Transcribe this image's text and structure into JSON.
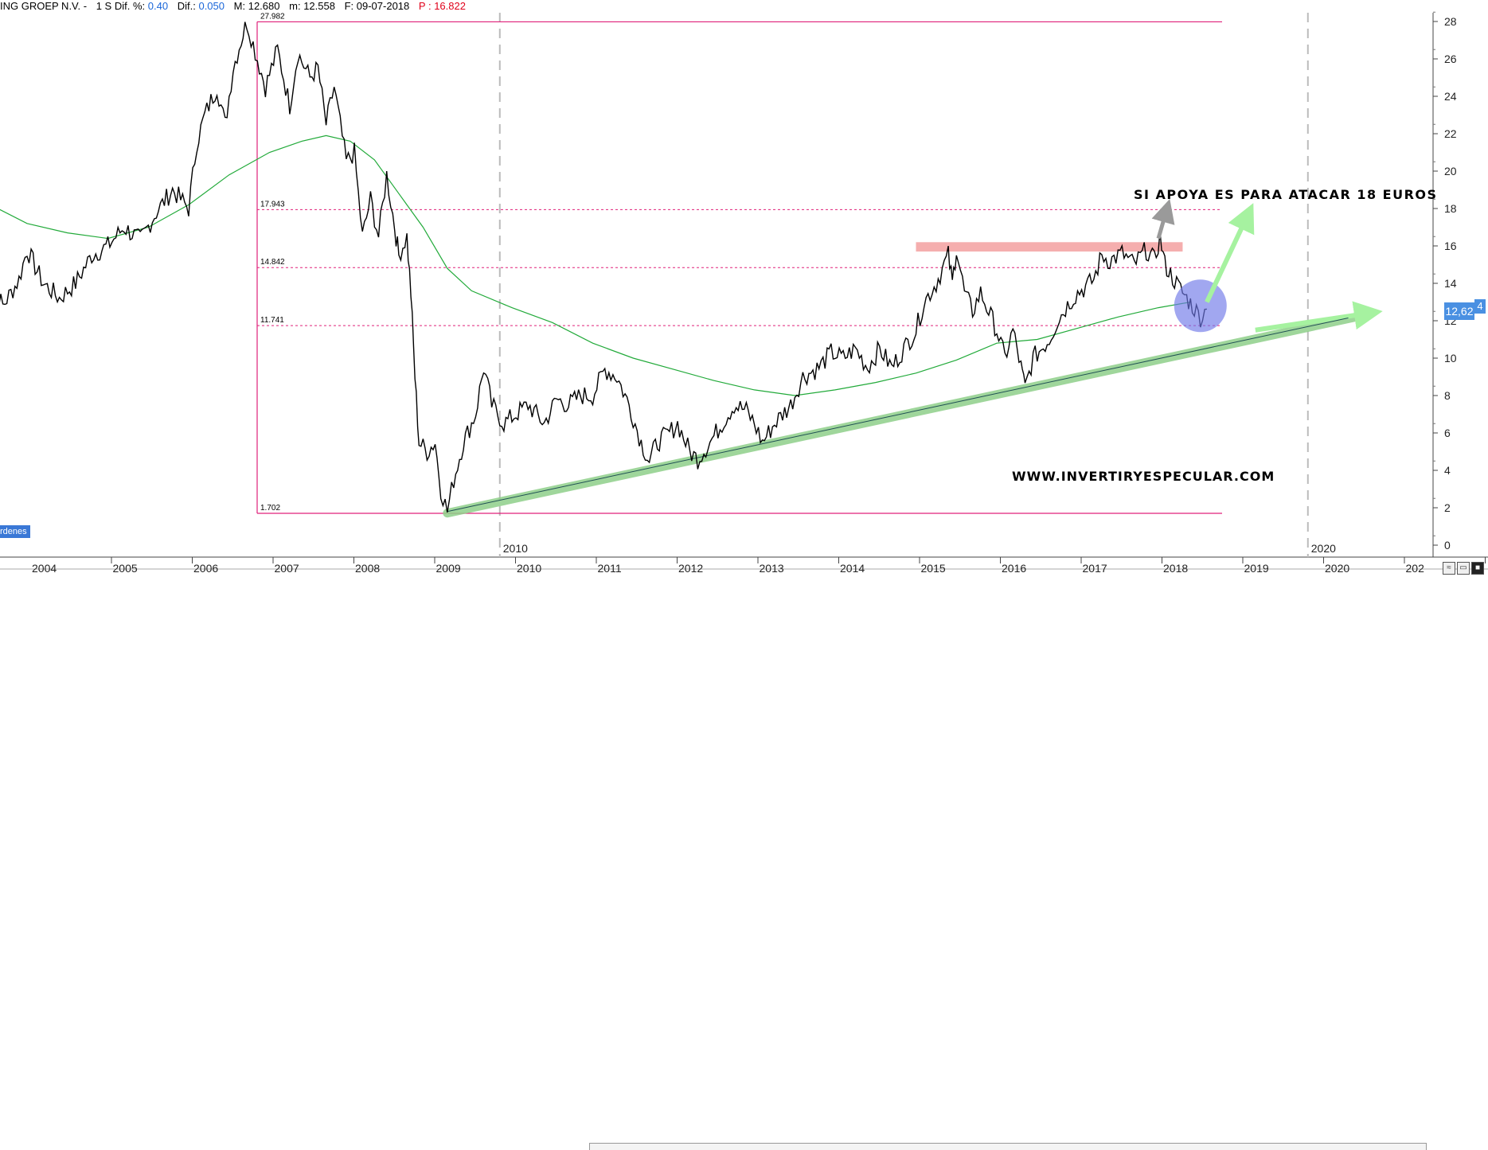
{
  "header": {
    "symbol": "ING GROEP N.V. -",
    "period": "1 S",
    "dif_pct_label": "Dif. %:",
    "dif_pct_value": "0.40",
    "dif_label": "Dif.:",
    "dif_value": "0.050",
    "max_label": "M:",
    "max_value": "12.680",
    "min_label": "m:",
    "min_value": "12.558",
    "date_label": "F:",
    "date_value": "09-07-2018",
    "price_label": "P :",
    "price_value": "16.822"
  },
  "badges": {
    "ordenes": "rdenes",
    "last_price": "12,62",
    "last_price_side": "4"
  },
  "colors": {
    "price": "#000000",
    "moving_average": "#22aa3a",
    "level_lines": "#e0207a",
    "trendline_highlight": "#8fd08a",
    "resistance_band": "#f39a9a",
    "circle": "#6e78e8",
    "arrow_green": "#a6f2a0",
    "arrow_gray": "#9a9a9a"
  },
  "chart_data": {
    "type": "line",
    "title": "",
    "xlabel": "",
    "ylabel": "",
    "ylim": [
      0,
      28.5
    ],
    "xlim": [
      2003.5,
      2021.0
    ],
    "y_ticks": [
      "0",
      "2",
      "4",
      "6",
      "8",
      "10",
      "12",
      "14",
      "16",
      "18",
      "20",
      "22",
      "24",
      "26",
      "28"
    ],
    "x_ticks": [
      "2004",
      "2005",
      "2006",
      "2007",
      "2008",
      "2009",
      "2010",
      "2011",
      "2012",
      "2013",
      "2014",
      "2015",
      "2016",
      "2017",
      "2018",
      "2019",
      "2020",
      "202"
    ],
    "x_ticks_upper": [
      "2010",
      "2020"
    ],
    "grid": false,
    "series": [
      {
        "values": [
          [
            2003.5,
            14.5
          ],
          [
            2003.7,
            12.8
          ],
          [
            2003.9,
            14.2
          ],
          [
            2004.0,
            15.8
          ],
          [
            2004.2,
            14.0
          ],
          [
            2004.4,
            13.2
          ],
          [
            2004.6,
            14.0
          ],
          [
            2004.8,
            15.5
          ],
          [
            2005.0,
            16.0
          ],
          [
            2005.2,
            17.0
          ],
          [
            2005.4,
            16.3
          ],
          [
            2005.6,
            17.8
          ],
          [
            2005.8,
            19.0
          ],
          [
            2006.0,
            18.0
          ],
          [
            2006.1,
            21.5
          ],
          [
            2006.2,
            23.0
          ],
          [
            2006.35,
            24.5
          ],
          [
            2006.45,
            22.5
          ],
          [
            2006.55,
            25.5
          ],
          [
            2006.65,
            27.0
          ],
          [
            2006.72,
            27.98
          ],
          [
            2006.85,
            26.0
          ],
          [
            2006.95,
            24.5
          ],
          [
            2007.1,
            26.5
          ],
          [
            2007.25,
            23.5
          ],
          [
            2007.35,
            26.3
          ],
          [
            2007.5,
            25.0
          ],
          [
            2007.6,
            25.5
          ],
          [
            2007.7,
            22.5
          ],
          [
            2007.8,
            24.5
          ],
          [
            2007.95,
            20.5
          ],
          [
            2008.05,
            21.0
          ],
          [
            2008.15,
            16.5
          ],
          [
            2008.25,
            18.5
          ],
          [
            2008.35,
            16.5
          ],
          [
            2008.45,
            19.8
          ],
          [
            2008.55,
            17.0
          ],
          [
            2008.6,
            15.5
          ],
          [
            2008.7,
            16.5
          ],
          [
            2008.75,
            13.5
          ],
          [
            2008.8,
            9.0
          ],
          [
            2008.85,
            5.5
          ],
          [
            2008.95,
            5.0
          ],
          [
            2009.05,
            5.5
          ],
          [
            2009.12,
            3.0
          ],
          [
            2009.2,
            1.8
          ],
          [
            2009.28,
            3.5
          ],
          [
            2009.4,
            5.5
          ],
          [
            2009.55,
            7.0
          ],
          [
            2009.65,
            9.5
          ],
          [
            2009.75,
            7.5
          ],
          [
            2009.9,
            6.5
          ],
          [
            2010.05,
            7.0
          ],
          [
            2010.2,
            7.5
          ],
          [
            2010.4,
            6.5
          ],
          [
            2010.55,
            7.8
          ],
          [
            2010.7,
            7.5
          ],
          [
            2010.85,
            8.0
          ],
          [
            2011.0,
            8.0
          ],
          [
            2011.15,
            9.4
          ],
          [
            2011.3,
            9.0
          ],
          [
            2011.45,
            7.5
          ],
          [
            2011.6,
            5.5
          ],
          [
            2011.7,
            4.5
          ],
          [
            2011.8,
            5.5
          ],
          [
            2011.95,
            6.0
          ],
          [
            2012.05,
            6.5
          ],
          [
            2012.2,
            5.0
          ],
          [
            2012.3,
            4.6
          ],
          [
            2012.45,
            5.5
          ],
          [
            2012.6,
            6.5
          ],
          [
            2012.75,
            7.5
          ],
          [
            2012.9,
            7.2
          ],
          [
            2013.0,
            6.5
          ],
          [
            2013.1,
            5.5
          ],
          [
            2013.25,
            6.5
          ],
          [
            2013.45,
            7.5
          ],
          [
            2013.6,
            9.0
          ],
          [
            2013.8,
            9.5
          ],
          [
            2013.95,
            10.3
          ],
          [
            2014.1,
            10.0
          ],
          [
            2014.25,
            10.5
          ],
          [
            2014.4,
            9.5
          ],
          [
            2014.55,
            10.5
          ],
          [
            2014.7,
            9.5
          ],
          [
            2014.85,
            10.5
          ],
          [
            2015.0,
            11.5
          ],
          [
            2015.1,
            13.0
          ],
          [
            2015.25,
            14.0
          ],
          [
            2015.4,
            15.5
          ],
          [
            2015.45,
            14.0
          ],
          [
            2015.5,
            15.9
          ],
          [
            2015.6,
            13.5
          ],
          [
            2015.7,
            12.5
          ],
          [
            2015.8,
            13.5
          ],
          [
            2015.9,
            12.5
          ],
          [
            2016.0,
            11.5
          ],
          [
            2016.1,
            10.0
          ],
          [
            2016.2,
            11.5
          ],
          [
            2016.3,
            9.5
          ],
          [
            2016.35,
            8.4
          ],
          [
            2016.45,
            10.0
          ],
          [
            2016.55,
            10.5
          ],
          [
            2016.65,
            11.0
          ],
          [
            2016.75,
            12.0
          ],
          [
            2016.9,
            13.0
          ],
          [
            2017.0,
            13.5
          ],
          [
            2017.1,
            13.8
          ],
          [
            2017.2,
            14.2
          ],
          [
            2017.3,
            15.5
          ],
          [
            2017.4,
            15.2
          ],
          [
            2017.55,
            15.6
          ],
          [
            2017.7,
            15.0
          ],
          [
            2017.85,
            15.8
          ],
          [
            2017.95,
            15.2
          ],
          [
            2018.02,
            16.5
          ],
          [
            2018.08,
            15.0
          ],
          [
            2018.15,
            14.5
          ],
          [
            2018.25,
            13.8
          ],
          [
            2018.35,
            13.2
          ],
          [
            2018.42,
            12.8
          ],
          [
            2018.52,
            12.2
          ],
          [
            2018.6,
            12.62
          ]
        ]
      },
      {
        "values": [
          [
            2003.5,
            18.3
          ],
          [
            2004.0,
            17.2
          ],
          [
            2004.5,
            16.7
          ],
          [
            2005.0,
            16.4
          ],
          [
            2005.5,
            17.0
          ],
          [
            2006.0,
            18.2
          ],
          [
            2006.5,
            19.8
          ],
          [
            2007.0,
            21.0
          ],
          [
            2007.4,
            21.6
          ],
          [
            2007.7,
            21.9
          ],
          [
            2008.0,
            21.6
          ],
          [
            2008.3,
            20.6
          ],
          [
            2008.6,
            18.8
          ],
          [
            2008.9,
            17.0
          ],
          [
            2009.2,
            14.8
          ],
          [
            2009.5,
            13.6
          ],
          [
            2010.0,
            12.7
          ],
          [
            2010.5,
            11.9
          ],
          [
            2011.0,
            10.8
          ],
          [
            2011.5,
            10.0
          ],
          [
            2012.0,
            9.4
          ],
          [
            2012.5,
            8.8
          ],
          [
            2013.0,
            8.3
          ],
          [
            2013.5,
            8.0
          ],
          [
            2014.0,
            8.3
          ],
          [
            2014.5,
            8.7
          ],
          [
            2015.0,
            9.2
          ],
          [
            2015.5,
            9.9
          ],
          [
            2016.0,
            10.8
          ],
          [
            2016.5,
            11.0
          ],
          [
            2017.0,
            11.6
          ],
          [
            2017.5,
            12.2
          ],
          [
            2018.0,
            12.7
          ],
          [
            2018.4,
            13.0
          ]
        ]
      }
    ],
    "levels": [
      {
        "value": 27.982,
        "label": "27.982"
      },
      {
        "value": 17.943,
        "label": "17.943"
      },
      {
        "value": 14.842,
        "label": "14.842"
      },
      {
        "value": 11.741,
        "label": "11.741"
      },
      {
        "value": 1.702,
        "label": "1.702"
      }
    ],
    "trendline": {
      "from": [
        2009.2,
        1.8
      ],
      "to": [
        2020.45,
        12.2
      ]
    },
    "resistance_band": {
      "x_from": 2015.0,
      "x_to": 2018.3,
      "y_from": 15.7,
      "y_to": 16.2
    },
    "annotations": [
      {
        "text": "SI APOYA ES PARA ATACAR 18 EUROS",
        "x": 2018.8,
        "y": 18.6
      },
      {
        "text": "WWW.INVERTIRYESPECULAR.COM",
        "x": 2016.5,
        "y": 4.0
      }
    ]
  }
}
